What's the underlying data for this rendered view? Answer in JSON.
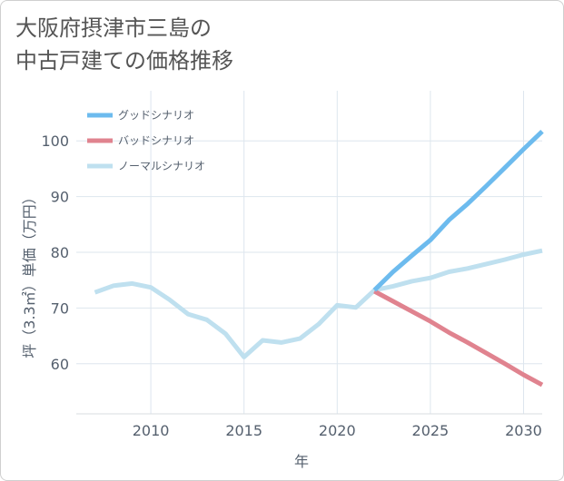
{
  "chart_data": {
    "type": "line",
    "title": "大阪府摂津市三島の\n中古戸建ての価格推移",
    "xlabel": "年",
    "ylabel": "坪（3.3㎡）単価（万円）",
    "xlim": [
      2006,
      2031
    ],
    "ylim": [
      51,
      109
    ],
    "xticks": [
      2010,
      2015,
      2020,
      2025,
      2030
    ],
    "yticks": [
      60,
      70,
      80,
      90,
      100
    ],
    "grid": true,
    "legend_position": "top-left",
    "series": [
      {
        "name": "グッドシナリオ",
        "color": "#6dbbee",
        "x": [
          2022,
          2023,
          2024,
          2025,
          2026,
          2027,
          2028,
          2029,
          2030,
          2031
        ],
        "y": [
          73.2,
          76.5,
          79.4,
          82.2,
          85.8,
          88.7,
          91.9,
          95.2,
          98.5,
          101.7
        ]
      },
      {
        "name": "バッドシナリオ",
        "color": "#e0838f",
        "x": [
          2022,
          2023,
          2024,
          2025,
          2026,
          2027,
          2028,
          2029,
          2030,
          2031
        ],
        "y": [
          73.0,
          71.2,
          69.4,
          67.6,
          65.6,
          63.8,
          61.9,
          60.0,
          58.0,
          56.2
        ]
      },
      {
        "name": "ノーマルシナリオ",
        "color": "#bfe0ef",
        "x": [
          2007,
          2008,
          2009,
          2010,
          2011,
          2012,
          2013,
          2014,
          2015,
          2016,
          2017,
          2018,
          2019,
          2020,
          2021,
          2022,
          2023,
          2024,
          2025,
          2026,
          2027,
          2028,
          2029,
          2030,
          2031
        ],
        "y": [
          72.8,
          74.0,
          74.4,
          73.7,
          71.5,
          68.9,
          67.9,
          65.4,
          61.2,
          64.2,
          63.8,
          64.5,
          67.1,
          70.5,
          70.1,
          73.2,
          73.9,
          74.8,
          75.4,
          76.5,
          77.1,
          77.9,
          78.7,
          79.6,
          80.3
        ]
      }
    ]
  }
}
